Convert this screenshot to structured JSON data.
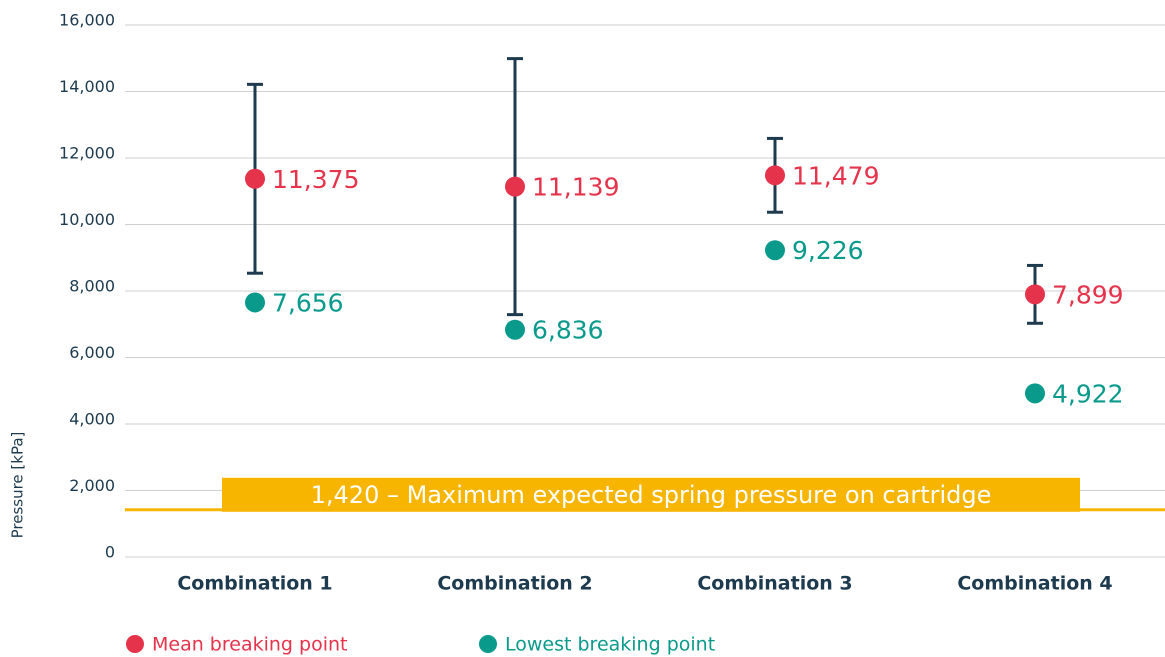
{
  "chart_data": {
    "type": "errorbar-dots",
    "y_label": "Pressure [kPa]",
    "categories": [
      "Combination 1",
      "Combination 2",
      "Combination 3",
      "Combination 4"
    ],
    "series": [
      {
        "name": "Mean breaking point",
        "color": "#e5334b",
        "values": [
          11375,
          11139,
          11479,
          7899
        ],
        "value_labels": [
          "11,375",
          "11,139",
          "11,479",
          "7,899"
        ],
        "errors": [
          2840,
          3850,
          1110,
          870
        ]
      },
      {
        "name": "Lowest breaking point",
        "color": "#0a9a8c",
        "values": [
          7656,
          6836,
          9226,
          4922
        ],
        "value_labels": [
          "7,656",
          "6,836",
          "9,226",
          "4,922"
        ]
      }
    ],
    "error_color": "#1d3a4e",
    "reference_line": {
      "value": 1420,
      "label": "1,420 – Maximum expected spring pressure on cartridge",
      "color": "#f7b500"
    },
    "ylim": [
      0,
      16000
    ],
    "yticks": [
      0,
      {
        "value": 2000,
        "label": "2,000"
      },
      {
        "value": 4000,
        "label": "4,000"
      },
      {
        "value": 6000,
        "label": "6,000"
      },
      {
        "value": 8000,
        "label": "8,000"
      },
      {
        "value": 10000,
        "label": "10,000"
      },
      {
        "value": 12000,
        "label": "12,000"
      },
      {
        "value": 14000,
        "label": "14,000"
      },
      {
        "value": 16000,
        "label": "16,000"
      }
    ],
    "grid": true
  }
}
